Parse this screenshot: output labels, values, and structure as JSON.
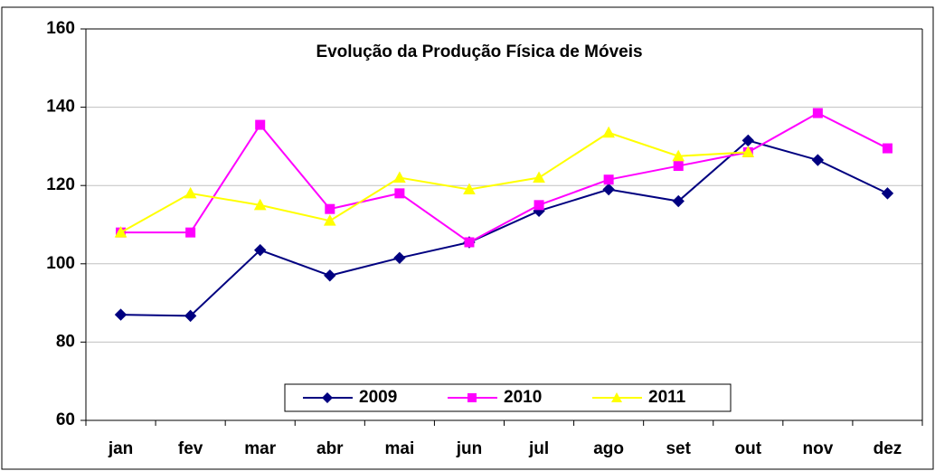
{
  "chart_data": {
    "type": "line",
    "title": "Evolução da Produção Física de Móveis",
    "categories": [
      "jan",
      "fev",
      "mar",
      "abr",
      "mai",
      "jun",
      "jul",
      "ago",
      "set",
      "out",
      "nov",
      "dez"
    ],
    "series": [
      {
        "name": "2009",
        "color": "#000080",
        "marker": "diamond",
        "values": [
          87,
          86.7,
          103.5,
          97,
          101.5,
          105.5,
          113.5,
          119,
          116,
          131.5,
          126.5,
          118
        ]
      },
      {
        "name": "2010",
        "color": "#ff00ff",
        "marker": "square",
        "values": [
          108,
          108,
          135.5,
          114,
          118,
          105.5,
          115,
          121.5,
          125,
          128.5,
          138.5,
          129.5
        ]
      },
      {
        "name": "2011",
        "color": "#ffff00",
        "marker": "triangle",
        "values": [
          108,
          118,
          115,
          111,
          122,
          119,
          122,
          133.5,
          127.5,
          128.5,
          null,
          null
        ]
      }
    ],
    "ylim": [
      60,
      160
    ],
    "yticks": [
      60,
      80,
      100,
      120,
      140,
      160
    ],
    "grid": true,
    "legend": "bottom"
  }
}
